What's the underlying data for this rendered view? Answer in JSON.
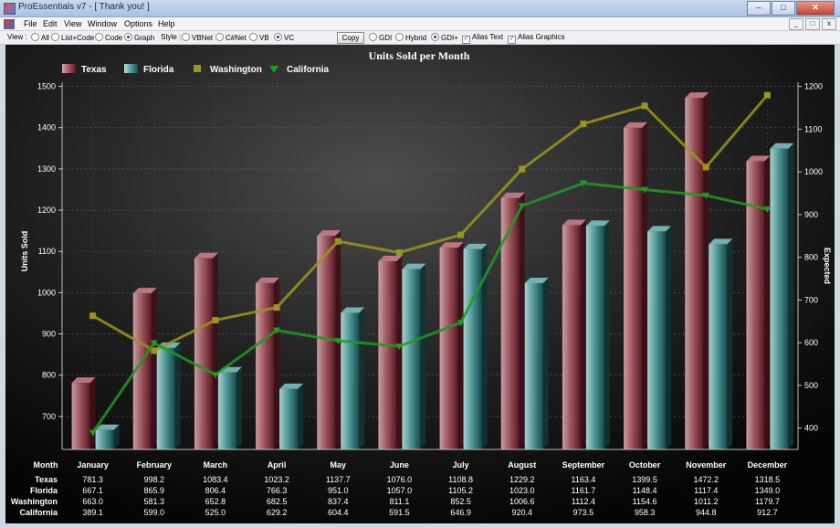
{
  "window": {
    "title": "ProEssentials v7 - [ Thank you! ]",
    "controls": [
      "–",
      "□",
      "✕"
    ],
    "mdi_controls": [
      "_",
      "□",
      "x"
    ]
  },
  "menu": [
    "File",
    "Edit",
    "View",
    "Window",
    "Options",
    "Help"
  ],
  "toolbar": {
    "view_label": "View :",
    "view_options": [
      "All",
      "List+Code",
      "Code",
      "Graph"
    ],
    "view_selected": "Graph",
    "style_label": "Style :",
    "style_options": [
      "VBNet",
      "C#Net",
      "VB",
      "VC"
    ],
    "style_selected": "VC",
    "copy_label": "Copy",
    "render_options": [
      "GDI",
      "Hybrid",
      "GDI+"
    ],
    "render_selected": "GDI+",
    "alias_text_label": "Alias Text",
    "alias_text_checked": true,
    "alias_graphics_label": "Alias Graphics",
    "alias_graphics_checked": true
  },
  "chart_data": {
    "type": "bar",
    "title": "Units Sold per Month",
    "xlabel": "Month",
    "ylabel": "Units Sold",
    "y2label": "Expected",
    "ylim": [
      620,
      1510
    ],
    "y2lim": [
      350,
      1210
    ],
    "yticks": [
      700,
      800,
      900,
      1000,
      1100,
      1200,
      1300,
      1400,
      1500
    ],
    "y2ticks": [
      400,
      500,
      600,
      700,
      800,
      900,
      1000,
      1100,
      1200
    ],
    "grid": true,
    "legend_position": "top-left",
    "categories": [
      "January",
      "February",
      "March",
      "April",
      "May",
      "June",
      "July",
      "August",
      "September",
      "October",
      "November",
      "December"
    ],
    "series": [
      {
        "name": "Texas",
        "type": "bar",
        "axis": "left",
        "color": "#8a2a35",
        "values": [
          781.3,
          998.2,
          1083.4,
          1023.2,
          1137.7,
          1076.0,
          1108.8,
          1229.2,
          1163.4,
          1399.5,
          1472.2,
          1318.5
        ]
      },
      {
        "name": "Florida",
        "type": "bar",
        "axis": "left",
        "color": "#2a7f80",
        "values": [
          667.1,
          865.9,
          806.4,
          766.3,
          951.0,
          1057.0,
          1105.2,
          1023.0,
          1161.7,
          1148.4,
          1117.4,
          1349.0
        ]
      },
      {
        "name": "Washington",
        "type": "line",
        "axis": "right",
        "color": "#9c9420",
        "values": [
          663.0,
          581.3,
          652.8,
          682.5,
          837.4,
          811.1,
          852.5,
          1006.6,
          1112.4,
          1154.6,
          1011.2,
          1179.7
        ]
      },
      {
        "name": "California",
        "type": "line",
        "axis": "right",
        "color": "#1f9a25",
        "values": [
          389.1,
          599.0,
          525.0,
          629.2,
          604.4,
          591.5,
          646.9,
          920.4,
          973.5,
          958.3,
          944.8,
          912.7
        ]
      }
    ]
  }
}
